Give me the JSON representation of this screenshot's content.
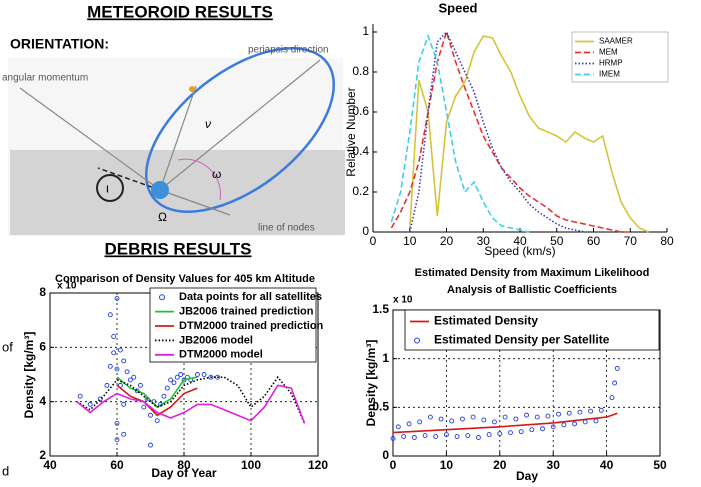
{
  "slide": {
    "headings": [
      "METEOROID RESULTS",
      "ORIENTATION:",
      "DEBRIS RESULTS"
    ],
    "diagram_labels": [
      "periapsis direction",
      "angular momentum",
      "ν",
      "ω",
      "Ω",
      "ι",
      "line of nodes"
    ],
    "fragments": [
      "of",
      "d"
    ]
  },
  "chart_data": [
    {
      "type": "line",
      "title": "Speed",
      "xlabel": "Speed (km/s)",
      "ylabel": "Relative Number",
      "x": [
        5,
        7.5,
        10,
        12.5,
        15,
        17.5,
        20,
        22.5,
        25,
        27.5,
        30,
        32.5,
        35,
        37.5,
        40,
        42.5,
        45,
        47.5,
        50,
        52.5,
        55,
        57.5,
        60,
        62.5,
        65,
        67.5,
        70,
        72.5,
        75
      ],
      "xlim": [
        0,
        80
      ],
      "xticks": [
        0,
        10,
        20,
        30,
        40,
        50,
        60,
        70,
        80
      ],
      "ylim": [
        0,
        1
      ],
      "yticks": [
        0,
        0.2,
        0.4,
        0.6,
        0.8,
        1
      ],
      "grid": false,
      "frame": false,
      "series": [
        {
          "name": "SAAMER",
          "color": "#d4c43c",
          "mode": "line",
          "dash": "solid",
          "values": [
            null,
            null,
            0.02,
            0.76,
            0.6,
            0.08,
            0.55,
            0.68,
            0.75,
            0.9,
            0.98,
            0.97,
            0.88,
            0.8,
            0.68,
            0.58,
            0.52,
            0.5,
            0.48,
            0.45,
            0.5,
            0.47,
            0.45,
            0.48,
            0.3,
            0.15,
            0.07,
            0.02,
            0
          ]
        },
        {
          "name": "MEM",
          "color": "#e8312a",
          "mode": "line",
          "dash": "dashed",
          "values": [
            0.02,
            0.1,
            0.2,
            0.35,
            0.6,
            0.85,
            1,
            0.85,
            0.72,
            0.6,
            0.48,
            0.4,
            0.32,
            0.27,
            0.22,
            0.18,
            0.15,
            0.12,
            0.08,
            0.06,
            0.05,
            0.04,
            0.03,
            0.02,
            0.01,
            0,
            0,
            null,
            null
          ]
        },
        {
          "name": "HRMP",
          "color": "#3a3ab8",
          "mode": "line",
          "dash": "dotted",
          "values": [
            null,
            null,
            0,
            0.2,
            0.6,
            0.95,
            1,
            0.9,
            0.8,
            0.7,
            0.55,
            0.42,
            0.32,
            0.25,
            0.2,
            0.14,
            0.1,
            0.07,
            0.04,
            0.02,
            0.01,
            0,
            null,
            null,
            null,
            null,
            null,
            null,
            null
          ]
        },
        {
          "name": "IMEM",
          "color": "#3ed0e8",
          "mode": "line",
          "dash": "dashed",
          "values": [
            0.05,
            0.2,
            0.5,
            0.85,
            0.98,
            0.85,
            0.6,
            0.35,
            0.2,
            0.25,
            0.15,
            0.07,
            0.03,
            0.02,
            0.01,
            0,
            null,
            null,
            null,
            null,
            null,
            null,
            null,
            null,
            null,
            null,
            null,
            null,
            null
          ]
        }
      ]
    },
    {
      "type": "line",
      "title": "Comparison of Density Values for 405 km Altitude",
      "xlabel": "Day of Year",
      "ylabel": "Density [kg/m³]",
      "scale_label": "x 10",
      "x": [
        48,
        52,
        56,
        60,
        64,
        68,
        72,
        76,
        80,
        84,
        88,
        92,
        96,
        100,
        104,
        108,
        112,
        116
      ],
      "xlim": [
        40,
        120
      ],
      "xticks": [
        40,
        60,
        80,
        100,
        120
      ],
      "ylim": [
        2,
        8
      ],
      "yticks": [
        2,
        4,
        6,
        8
      ],
      "grid": true,
      "frame": true,
      "series": [
        {
          "name": "Data points for all satellites",
          "color": "#1f3fe0",
          "mode": "markers",
          "x": [
            49,
            52,
            55,
            57,
            58,
            59,
            59,
            60,
            60,
            60,
            61,
            61,
            62,
            62,
            63,
            64,
            65,
            66,
            67,
            68,
            69,
            70,
            71,
            72,
            73,
            74,
            75,
            76,
            77,
            78,
            79,
            80,
            81,
            82,
            84,
            86,
            88,
            90,
            60,
            62,
            58,
            70
          ],
          "values": [
            4.2,
            3.9,
            4.1,
            4.6,
            5.3,
            5.8,
            6.4,
            7.8,
            5.2,
            3.2,
            5.9,
            4.6,
            5.5,
            3.9,
            5.1,
            4.8,
            4.9,
            4.4,
            4.6,
            3.8,
            4.1,
            3.5,
            4.0,
            3.3,
            3.9,
            4.2,
            4.5,
            4.8,
            4.7,
            4.9,
            5.0,
            4.8,
            4.9,
            4.8,
            5.0,
            5.0,
            4.9,
            4.9,
            2.6,
            2.8,
            7.2,
            2.4
          ]
        },
        {
          "name": "JB2006 trained prediction",
          "color": "#18c828",
          "mode": "line",
          "dash": "solid",
          "values": [
            null,
            null,
            null,
            4.9,
            4.5,
            4.3,
            3.8,
            4.1,
            4.8,
            4.9,
            null,
            null,
            null,
            null,
            null,
            null,
            null,
            null
          ]
        },
        {
          "name": "DTM2000 trained prediction",
          "color": "#d81818",
          "mode": "line",
          "dash": "solid",
          "values": [
            null,
            null,
            null,
            4.6,
            4.2,
            4.0,
            3.5,
            3.8,
            4.3,
            4.5,
            null,
            null,
            null,
            null,
            null,
            null,
            null,
            null
          ]
        },
        {
          "name": "JB2006 model",
          "color": "#000000",
          "mode": "line",
          "dash": "dotted",
          "values": [
            4,
            3.7,
            4.2,
            4.8,
            4.6,
            4.2,
            3.8,
            4.0,
            4.6,
            4.8,
            4.9,
            4.9,
            4.6,
            3.8,
            4.2,
            4.9,
            4.3,
            3.2
          ]
        },
        {
          "name": "DTM2000 model",
          "color": "#e020e0",
          "mode": "line",
          "dash": "solid",
          "values": [
            4,
            3.6,
            4.0,
            4.3,
            4.1,
            4.0,
            3.6,
            3.4,
            3.6,
            3.9,
            3.9,
            3.7,
            3.5,
            3.3,
            3.8,
            4.6,
            4.5,
            3.2
          ]
        }
      ]
    },
    {
      "type": "line",
      "title": [
        "Estimated Density from Maximum Likelihood",
        "Analysis of Ballistic Coefficients"
      ],
      "xlabel": "Day",
      "ylabel": "Density [kg/m³]",
      "scale_label": "x 10",
      "x": [
        0,
        10,
        20,
        30,
        40,
        42
      ],
      "xlim": [
        0,
        50
      ],
      "xticks": [
        0,
        10,
        20,
        30,
        40,
        50
      ],
      "ylim": [
        0,
        1.5
      ],
      "yticks": [
        0,
        0.5,
        1,
        1.5
      ],
      "grid": true,
      "frame": true,
      "series": [
        {
          "name": "Estimated Density",
          "color": "#d81818",
          "mode": "line",
          "dash": "solid",
          "values": [
            0.24,
            0.27,
            0.3,
            0.34,
            0.4,
            0.44
          ]
        },
        {
          "name": "Estimated Density per Satellite",
          "color": "#1f3fe0",
          "mode": "markers",
          "x": [
            0,
            2,
            4,
            6,
            8,
            10,
            12,
            14,
            16,
            18,
            20,
            22,
            24,
            26,
            28,
            30,
            32,
            34,
            36,
            38,
            1,
            3,
            5,
            7,
            9,
            11,
            13,
            15,
            17,
            19,
            21,
            23,
            25,
            27,
            29,
            31,
            33,
            35,
            37,
            39,
            41,
            41.5,
            42
          ],
          "values": [
            0.18,
            0.2,
            0.19,
            0.21,
            0.2,
            0.22,
            0.2,
            0.21,
            0.19,
            0.22,
            0.23,
            0.24,
            0.25,
            0.27,
            0.28,
            0.3,
            0.32,
            0.33,
            0.35,
            0.36,
            0.3,
            0.33,
            0.35,
            0.4,
            0.38,
            0.36,
            0.38,
            0.4,
            0.37,
            0.35,
            0.4,
            0.38,
            0.42,
            0.4,
            0.41,
            0.43,
            0.44,
            0.45,
            0.46,
            0.47,
            0.6,
            0.75,
            0.9
          ]
        }
      ]
    }
  ]
}
